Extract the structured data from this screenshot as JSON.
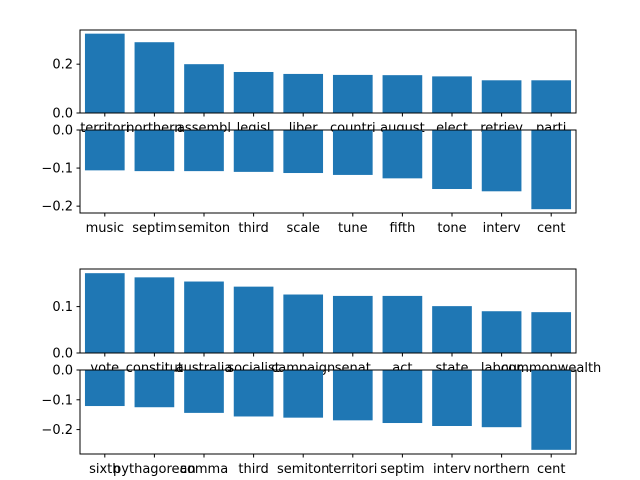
{
  "chart_data": [
    {
      "type": "bar",
      "categories": [
        "territori",
        "northern",
        "assembl",
        "legisl",
        "liber",
        "countri",
        "august",
        "elect",
        "retriev",
        "parti"
      ],
      "values": [
        0.325,
        0.29,
        0.2,
        0.168,
        0.16,
        0.156,
        0.155,
        0.15,
        0.134,
        0.134
      ],
      "ylim": [
        0,
        0.34
      ],
      "yticks": [
        0.0,
        0.2
      ],
      "ytick_labels": [
        "0.0",
        "0.2"
      ],
      "color": "#1f77b4"
    },
    {
      "type": "bar",
      "categories": [
        "music",
        "septim",
        "semiton",
        "third",
        "scale",
        "tune",
        "fifth",
        "tone",
        "interv",
        "cent"
      ],
      "values": [
        -0.106,
        -0.108,
        -0.108,
        -0.11,
        -0.113,
        -0.118,
        -0.127,
        -0.155,
        -0.161,
        -0.208
      ],
      "ylim": [
        -0.218,
        0
      ],
      "yticks": [
        0.0,
        -0.1,
        -0.2
      ],
      "ytick_labels": [
        "0.0",
        "−0.1",
        "−0.2"
      ],
      "color": "#1f77b4"
    },
    {
      "type": "bar",
      "categories": [
        "vote",
        "constitut",
        "australia",
        "socialist",
        "campaign",
        "senat",
        "act",
        "state",
        "labour",
        "commonwealth"
      ],
      "values": [
        0.172,
        0.163,
        0.154,
        0.143,
        0.126,
        0.123,
        0.123,
        0.101,
        0.09,
        0.088
      ],
      "ylim": [
        0,
        0.181
      ],
      "yticks": [
        0.0,
        0.1
      ],
      "ytick_labels": [
        "0.0",
        "0.1"
      ],
      "color": "#1f77b4"
    },
    {
      "type": "bar",
      "categories": [
        "sixth",
        "pythagorean",
        "comma",
        "third",
        "semiton",
        "territori",
        "septim",
        "interv",
        "northern",
        "cent"
      ],
      "values": [
        -0.121,
        -0.125,
        -0.144,
        -0.156,
        -0.16,
        -0.169,
        -0.178,
        -0.188,
        -0.192,
        -0.268
      ],
      "ylim": [
        -0.282,
        0
      ],
      "yticks": [
        0.0,
        -0.1,
        -0.2
      ],
      "ytick_labels": [
        "0.0",
        "−0.1",
        "−0.2"
      ],
      "color": "#1f77b4"
    }
  ]
}
